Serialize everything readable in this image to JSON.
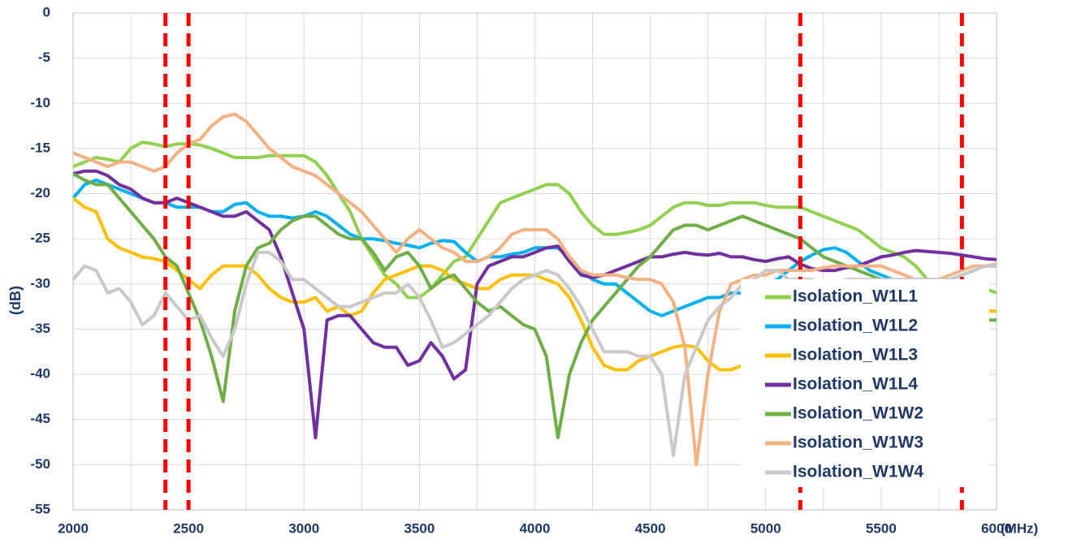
{
  "chart_data": {
    "type": "line",
    "y_label": "(dB)",
    "x_label": "(MHz)",
    "x": [
      2000,
      2050,
      2100,
      2150,
      2200,
      2250,
      2300,
      2350,
      2400,
      2450,
      2500,
      2550,
      2600,
      2650,
      2700,
      2750,
      2800,
      2850,
      2900,
      2950,
      3000,
      3050,
      3100,
      3150,
      3200,
      3250,
      3300,
      3350,
      3400,
      3450,
      3500,
      3550,
      3600,
      3650,
      3700,
      3750,
      3800,
      3850,
      3900,
      3950,
      4000,
      4050,
      4100,
      4150,
      4200,
      4250,
      4300,
      4350,
      4400,
      4450,
      4500,
      4550,
      4600,
      4650,
      4700,
      4750,
      4800,
      4850,
      4900,
      4950,
      5000,
      5050,
      5100,
      5150,
      5200,
      5250,
      5300,
      5350,
      5400,
      5450,
      5500,
      5550,
      5600,
      5650,
      5700,
      5750,
      5800,
      5850,
      5900,
      5950,
      6000
    ],
    "series": [
      {
        "name": "Isolation_W1L1",
        "color": "#92d050",
        "values": [
          -17,
          -16.5,
          -16,
          -16.2,
          -16.5,
          -15,
          -14.3,
          -14.5,
          -14.8,
          -14.5,
          -14.5,
          -14.6,
          -15,
          -15.5,
          -16,
          -16,
          -16,
          -15.8,
          -15.8,
          -15.8,
          -15.8,
          -16.5,
          -18,
          -20,
          -22,
          -25,
          -27,
          -29,
          -30,
          -31.5,
          -31.5,
          -30.5,
          -29,
          -27.5,
          -27,
          -25,
          -23,
          -21,
          -20.5,
          -20,
          -19.5,
          -19,
          -19,
          -20,
          -22,
          -23.5,
          -24.5,
          -24.5,
          -24.3,
          -24,
          -23.5,
          -22.5,
          -21.5,
          -21,
          -21,
          -21.3,
          -21.3,
          -21,
          -21,
          -21,
          -21.3,
          -21.5,
          -21.5,
          -21.5,
          -22,
          -22.5,
          -23,
          -23.5,
          -24,
          -25,
          -26,
          -26.5,
          -27,
          -28,
          -29.5,
          -30.5,
          -31,
          -30.5,
          -30,
          -30.5,
          -31
        ]
      },
      {
        "name": "Isolation_W1L2",
        "color": "#00b0f0",
        "values": [
          -20.5,
          -19,
          -18.5,
          -19,
          -19.5,
          -20,
          -20.5,
          -21,
          -21,
          -21.5,
          -21.5,
          -21.5,
          -22,
          -22,
          -21.2,
          -21,
          -22,
          -22.5,
          -22.5,
          -22.7,
          -22.5,
          -22,
          -22.5,
          -23.5,
          -24.5,
          -25,
          -25,
          -25.2,
          -25.5,
          -25.7,
          -26,
          -25.5,
          -25.2,
          -25.3,
          -26.5,
          -27.5,
          -27,
          -27,
          -26.7,
          -26.5,
          -26,
          -26,
          -26,
          -27,
          -28.5,
          -29.5,
          -30,
          -30,
          -31,
          -32,
          -33,
          -33.5,
          -33,
          -32.5,
          -32,
          -31.5,
          -31.5,
          -31,
          -31,
          -30.5,
          -30,
          -29.5,
          -28.5,
          -27.5,
          -26.8,
          -26.2,
          -26,
          -26.5,
          -27.5,
          -28.5,
          -29,
          -29.5,
          -30,
          -30,
          -30,
          -30,
          -29.5,
          -29,
          -28.5,
          -28,
          -28
        ]
      },
      {
        "name": "Isolation_W1L3",
        "color": "#ffc000",
        "values": [
          -20.5,
          -21.5,
          -22,
          -25,
          -26,
          -26.5,
          -27,
          -27.2,
          -27.5,
          -28.5,
          -29.5,
          -30.5,
          -29,
          -28,
          -28,
          -28,
          -29,
          -30.5,
          -31.5,
          -32,
          -32,
          -31.5,
          -33,
          -32.5,
          -33.5,
          -33,
          -31,
          -29.5,
          -29,
          -28.5,
          -28,
          -28,
          -28.5,
          -29.5,
          -30,
          -30.5,
          -30.5,
          -29.5,
          -29,
          -29,
          -29,
          -29.5,
          -30,
          -31.5,
          -34,
          -37,
          -39,
          -39.5,
          -39.5,
          -38.5,
          -38,
          -37.5,
          -37,
          -36.8,
          -37,
          -38.5,
          -39.5,
          -39.5,
          -39,
          -38.5,
          -38,
          -37.5,
          -37,
          -36.5,
          -36,
          -35.5,
          -35,
          -35,
          -34.5,
          -34.5,
          -34,
          -34,
          -34,
          -33.5,
          -33.5,
          -33.5,
          -33,
          -33,
          -33,
          -33,
          -33
        ]
      },
      {
        "name": "Isolation_W1L4",
        "color": "#7030a0",
        "values": [
          -17.8,
          -17.5,
          -17.5,
          -18,
          -19,
          -19.5,
          -20.5,
          -21,
          -21,
          -20.5,
          -21,
          -21.5,
          -22,
          -22.5,
          -22.5,
          -22,
          -23,
          -24,
          -27,
          -31,
          -35,
          -47,
          -34,
          -33.5,
          -33.5,
          -35,
          -36.5,
          -37,
          -37,
          -39,
          -38.5,
          -36.5,
          -38,
          -40.5,
          -39.5,
          -30,
          -28,
          -27.5,
          -27,
          -27,
          -26.5,
          -26,
          -25.8,
          -27.5,
          -29,
          -29.3,
          -29,
          -28.5,
          -28,
          -27.5,
          -27,
          -27,
          -26.7,
          -26.5,
          -26.7,
          -26.8,
          -26.6,
          -27,
          -27,
          -27.3,
          -27.5,
          -27.2,
          -27,
          -27.8,
          -28.3,
          -28.5,
          -28.5,
          -28.2,
          -28,
          -27.5,
          -27,
          -26.8,
          -26.5,
          -26.3,
          -26.4,
          -26.5,
          -26.6,
          -26.8,
          -27,
          -27.2,
          -27.3
        ]
      },
      {
        "name": "Isolation_W1W2",
        "color": "#70ad47",
        "values": [
          -17.8,
          -18.5,
          -19,
          -19,
          -20.5,
          -22,
          -23.5,
          -25,
          -27,
          -28,
          -31,
          -34,
          -38,
          -43,
          -33,
          -28,
          -26,
          -25.5,
          -24,
          -23,
          -22.5,
          -22.5,
          -23.5,
          -24.5,
          -25,
          -25,
          -26.5,
          -28.5,
          -27,
          -26.5,
          -28,
          -30.5,
          -29.5,
          -29,
          -30.5,
          -32,
          -33,
          -32.5,
          -33.5,
          -34.5,
          -35,
          -38,
          -47,
          -40,
          -36.5,
          -34,
          -32.5,
          -31,
          -29.5,
          -28,
          -27,
          -25.5,
          -24,
          -23.5,
          -23.5,
          -24,
          -23.5,
          -23,
          -22.5,
          -23,
          -23.5,
          -24,
          -24.5,
          -25,
          -26,
          -27,
          -27.5,
          -28,
          -28.5,
          -29,
          -29.5,
          -30,
          -30.5,
          -31,
          -31.5,
          -32,
          -32.5,
          -33,
          -33.5,
          -34,
          -34
        ]
      },
      {
        "name": "Isolation_W1W3",
        "color": "#f4b183",
        "values": [
          -15.5,
          -16,
          -16.5,
          -17,
          -16.5,
          -16.5,
          -17,
          -17.5,
          -17,
          -15.5,
          -14.5,
          -14,
          -12.5,
          -11.5,
          -11.2,
          -12,
          -13.5,
          -15,
          -16,
          -17,
          -17.5,
          -18,
          -19,
          -20,
          -21,
          -22,
          -23.5,
          -25,
          -26.5,
          -25,
          -24,
          -25,
          -26,
          -26.5,
          -27.5,
          -27.5,
          -27,
          -26,
          -24.5,
          -24,
          -24,
          -24,
          -25,
          -27,
          -28.5,
          -29,
          -29,
          -29,
          -29.3,
          -29.5,
          -29.5,
          -30,
          -32,
          -37,
          -50,
          -40,
          -33,
          -30,
          -29.5,
          -29,
          -29,
          -28.5,
          -28.5,
          -28.5,
          -28.5,
          -28.2,
          -28,
          -28,
          -28,
          -28,
          -28,
          -28.5,
          -29,
          -29.5,
          -29.5,
          -29.5,
          -29,
          -28.5,
          -28,
          -28,
          -27.8
        ]
      },
      {
        "name": "Isolation_W1W4",
        "color": "#c9c9c9",
        "values": [
          -29.5,
          -28,
          -28.5,
          -31,
          -30.5,
          -32,
          -34.5,
          -33.5,
          -31,
          -32.5,
          -34,
          -33.5,
          -36,
          -38,
          -35,
          -30,
          -26.5,
          -26.5,
          -27.5,
          -29.5,
          -29.5,
          -30.5,
          -31.5,
          -32.5,
          -32.5,
          -32,
          -31.5,
          -31,
          -31,
          -30,
          -31.5,
          -34,
          -37,
          -36.5,
          -35.5,
          -34.5,
          -33.5,
          -32,
          -30.5,
          -29.5,
          -29,
          -28.5,
          -29,
          -30.5,
          -32.5,
          -35,
          -37.5,
          -37.5,
          -37.5,
          -38,
          -38,
          -40,
          -49,
          -40,
          -37,
          -34,
          -32.5,
          -31.5,
          -30,
          -29.5,
          -28.5,
          -28.5,
          -29.5,
          -29.5,
          -29.5,
          -30,
          -30,
          -29.5,
          -29.5,
          -29.5,
          -29.5,
          -29.5,
          -29.5,
          -29.5,
          -29.5,
          -29.5,
          -29.5,
          -29,
          -28.5,
          -28,
          -28
        ]
      }
    ],
    "xlim": [
      2000,
      6000
    ],
    "xticks": [
      2000,
      2500,
      3000,
      3500,
      4000,
      4500,
      5000,
      5500,
      6000
    ],
    "x_minor_ticks": [
      2250,
      2750,
      3250,
      3750,
      4250,
      4750,
      5250,
      5750
    ],
    "ylim": [
      -55,
      0
    ],
    "yticks": [
      0,
      -5,
      -10,
      -15,
      -20,
      -25,
      -30,
      -35,
      -40,
      -45,
      -50,
      -55
    ],
    "grid": true,
    "legend": "lower right",
    "reference_lines": {
      "x": [
        2400,
        2500,
        5150,
        5850
      ],
      "color": "#ff0000"
    }
  }
}
